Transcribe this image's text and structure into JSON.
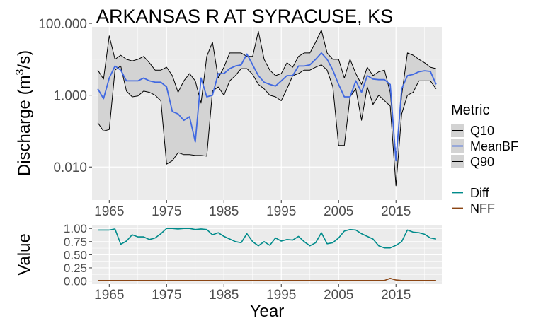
{
  "chart_data": [
    {
      "type": "line",
      "title": "ARKANSAS R AT SYRACUSE, KS",
      "xlabel": "",
      "ylabel": "Discharge (m³/s)",
      "ylabel_parts": {
        "pre": "Discharge (m",
        "sup": "3",
        "post": "/s)"
      },
      "scale": "log10",
      "xlim": [
        1962,
        2023
      ],
      "ylim": [
        0.0012,
        80
      ],
      "xticks": [
        1965,
        1975,
        1985,
        1995,
        2005,
        2015
      ],
      "xtick_labels": [
        "1965",
        "1975",
        "1985",
        "1995",
        "2005",
        "2015"
      ],
      "yticks": [
        0.01,
        1,
        100
      ],
      "ytick_labels": [
        "0.010",
        "1.000",
        "100.000"
      ],
      "grid": true,
      "legend_title": "Metric",
      "legend_placement": "right",
      "x": [
        1963,
        1964,
        1965,
        1966,
        1967,
        1968,
        1969,
        1970,
        1971,
        1972,
        1973,
        1974,
        1975,
        1976,
        1977,
        1978,
        1979,
        1980,
        1981,
        1982,
        1983,
        1984,
        1985,
        1986,
        1987,
        1988,
        1989,
        1990,
        1991,
        1992,
        1993,
        1994,
        1995,
        1996,
        1997,
        1998,
        1999,
        2000,
        2001,
        2002,
        2003,
        2004,
        2005,
        2006,
        2007,
        2008,
        2009,
        2010,
        2011,
        2012,
        2013,
        2014,
        2015,
        2016,
        2017,
        2018,
        2019,
        2020,
        2021,
        2022
      ],
      "series": [
        {
          "name": "Q10",
          "color": "#000000",
          "values": [
            0.17,
            0.1,
            0.11,
            5,
            6.5,
            1.3,
            0.9,
            0.95,
            1.3,
            1.2,
            1.0,
            0.7,
            0.012,
            0.015,
            0.025,
            0.022,
            0.022,
            0.021,
            0.021,
            0.02,
            1.3,
            1.7,
            1.0,
            2.5,
            3.5,
            5.5,
            5.5,
            3.8,
            2.0,
            1.5,
            1.0,
            0.9,
            0.7,
            1.5,
            3.5,
            4.0,
            5.0,
            5.0,
            6.0,
            7.0,
            5.0,
            1.7,
            0.04,
            0.04,
            0.9,
            1.5,
            0.2,
            1.7,
            0.55,
            1.0,
            0.7,
            0.5,
            0.003,
            0.3,
            1.0,
            1.2,
            2.5,
            2.5,
            2.5,
            1.5
          ]
        },
        {
          "name": "MeanBF",
          "color": "#4169E1",
          "values": [
            1.5,
            0.8,
            3,
            6.5,
            5,
            2.5,
            2.5,
            2.5,
            3,
            2.5,
            2.3,
            2.3,
            1.7,
            0.35,
            0.3,
            0.2,
            0.25,
            0.05,
            3,
            0.9,
            1.0,
            4.0,
            4.0,
            5.5,
            6.5,
            7.0,
            14,
            7,
            3.5,
            2.3,
            2.0,
            1.8,
            2.5,
            3.5,
            3.5,
            6.5,
            6.5,
            7.0,
            10,
            15,
            10,
            5,
            2,
            0.9,
            0.9,
            2.5,
            1.2,
            3.5,
            2.8,
            2.7,
            2.7,
            2.0,
            0.015,
            1.5,
            3.5,
            3.8,
            4.5,
            4.8,
            4.6,
            2.0
          ]
        },
        {
          "name": "Q90",
          "color": "#000000",
          "values": [
            5,
            2.8,
            45,
            10,
            13,
            10,
            9,
            10,
            12,
            8,
            5,
            5,
            6,
            3.5,
            1.2,
            2.5,
            4,
            2.5,
            0.6,
            12,
            30,
            3,
            6,
            15,
            15,
            15,
            12,
            12,
            60,
            10,
            5,
            3.5,
            4,
            8,
            6,
            12,
            15,
            15,
            30,
            65,
            15,
            10,
            10,
            3,
            10,
            4,
            2,
            6,
            3.5,
            4.5,
            5,
            1.2,
            0.02,
            1,
            15,
            13,
            10,
            8,
            6,
            5.5
          ]
        }
      ]
    },
    {
      "type": "line",
      "xlabel": "Year",
      "ylabel": "Value",
      "xlim": [
        1962,
        2023
      ],
      "ylim": [
        -0.06,
        1.07
      ],
      "xticks": [
        1965,
        1975,
        1985,
        1995,
        2005,
        2015
      ],
      "xtick_labels": [
        "1965",
        "1975",
        "1985",
        "1995",
        "2005",
        "2015"
      ],
      "yticks": [
        0,
        0.25,
        0.5,
        0.75,
        1.0
      ],
      "ytick_labels": [
        "0.00",
        "0.25",
        "0.50",
        "0.75",
        "1.00"
      ],
      "grid": true,
      "legend_placement": "right",
      "x": [
        1963,
        1964,
        1965,
        1966,
        1967,
        1968,
        1969,
        1970,
        1971,
        1972,
        1973,
        1974,
        1975,
        1976,
        1977,
        1978,
        1979,
        1980,
        1981,
        1982,
        1983,
        1984,
        1985,
        1986,
        1987,
        1988,
        1989,
        1990,
        1991,
        1992,
        1993,
        1994,
        1995,
        1996,
        1997,
        1998,
        1999,
        2000,
        2001,
        2002,
        2003,
        2004,
        2005,
        2006,
        2007,
        2008,
        2009,
        2010,
        2011,
        2012,
        2013,
        2014,
        2015,
        2016,
        2017,
        2018,
        2019,
        2020,
        2021,
        2022
      ],
      "series": [
        {
          "name": "Diff",
          "color": "#008B8B",
          "values": [
            0.97,
            0.97,
            0.97,
            0.99,
            0.7,
            0.76,
            0.88,
            0.84,
            0.84,
            0.79,
            0.82,
            0.9,
            1.0,
            1.0,
            0.99,
            1.0,
            1.0,
            0.98,
            0.99,
            0.98,
            0.88,
            0.92,
            0.85,
            0.8,
            0.75,
            0.73,
            0.9,
            0.75,
            0.67,
            0.75,
            0.68,
            0.82,
            0.76,
            0.79,
            0.78,
            0.85,
            0.75,
            0.67,
            0.73,
            0.92,
            0.71,
            0.73,
            0.82,
            0.95,
            0.98,
            0.97,
            0.9,
            0.85,
            0.8,
            0.67,
            0.63,
            0.63,
            0.68,
            0.75,
            0.97,
            0.93,
            0.92,
            0.89,
            0.82,
            0.8
          ]
        },
        {
          "name": "NFF",
          "color": "#8B4513",
          "values": [
            0.01,
            0.01,
            0.01,
            0.01,
            0.01,
            0.01,
            0.01,
            0.01,
            0.01,
            0.01,
            0.01,
            0.01,
            0.01,
            0.01,
            0.01,
            0.01,
            0.01,
            0.01,
            0.01,
            0.01,
            0.01,
            0.01,
            0.01,
            0.01,
            0.01,
            0.01,
            0.01,
            0.01,
            0.01,
            0.01,
            0.01,
            0.01,
            0.01,
            0.01,
            0.01,
            0.01,
            0.01,
            0.01,
            0.01,
            0.01,
            0.01,
            0.01,
            0.01,
            0.01,
            0.01,
            0.01,
            0.01,
            0.01,
            0.01,
            0.01,
            0.01,
            0.05,
            0.02,
            0.01,
            0.01,
            0.01,
            0.01,
            0.01,
            0.01,
            0.01
          ]
        }
      ]
    }
  ]
}
